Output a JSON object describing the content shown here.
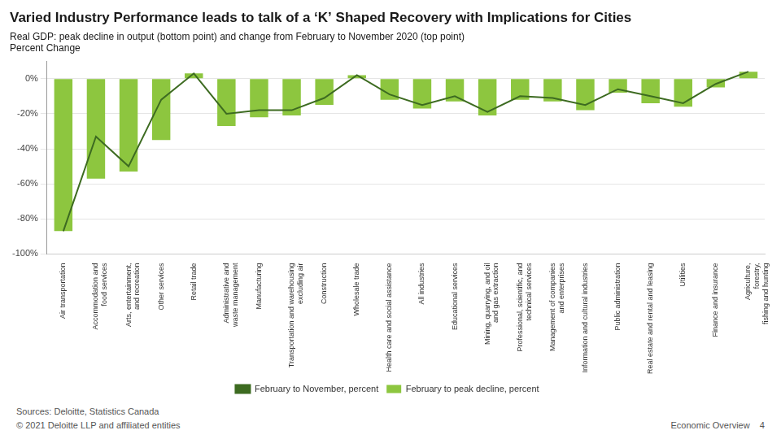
{
  "chart_data": {
    "type": "bar",
    "title": "Varied Industry Performance leads to talk of a ‘K’ Shaped Recovery with Implications for Cities",
    "subtitle": [
      "Real GDP: peak decline in output (bottom point) and change from February to November 2020 (top point)",
      "Percent Change"
    ],
    "categories": [
      "Air transportation",
      "Accommodation and\nfood services",
      "Arts, entertainment,\nand recreation",
      "Other services",
      "Retail trade",
      "Administrative and\nwaste management",
      "Manufacturing",
      "Transportation and warehousing\nexcluding air",
      "Construction",
      "Wholesale trade",
      "Health care and social assistance",
      "All industries",
      "Educational services",
      "Mining, quarrying, and oil\nand gas extraction",
      "Professional, scientific, and\ntechnical services",
      "Management of companies\nand enterprises",
      "Information and cultural industries",
      "Public administration",
      "Real estate and rental and leasing",
      "Utilities",
      "Finance and insurance",
      "Agriculture,\nforestry,\nfishing and hunting"
    ],
    "series": [
      {
        "name": "February to peak decline, percent",
        "type": "bar",
        "color": "#8dc63f",
        "values": [
          -87,
          -57,
          -53,
          -35,
          3,
          -27,
          -22,
          -21,
          -15,
          2,
          -12,
          -17,
          -13,
          -21,
          -12,
          -13,
          -18,
          -8,
          -14,
          -16,
          -5,
          4
        ]
      },
      {
        "name": "February to November, percent",
        "type": "line",
        "color": "#3d6b21",
        "marker": "none",
        "values": [
          -87,
          -33,
          -50,
          -12,
          3,
          -20,
          -18,
          -18,
          -11,
          2,
          -9,
          -15,
          -10,
          -19,
          -10,
          -11,
          -15,
          -6,
          -10,
          -14,
          -3,
          4
        ]
      }
    ],
    "ylim": [
      -100,
      10
    ],
    "yticks": [
      {
        "value": 0,
        "label": "0%"
      },
      {
        "value": -20,
        "label": "-20%"
      },
      {
        "value": -40,
        "label": "-40%"
      },
      {
        "value": -60,
        "label": "-60%"
      },
      {
        "value": -80,
        "label": "-80%"
      },
      {
        "value": -100,
        "label": "-100%"
      }
    ],
    "grid": true,
    "legend": "bottom",
    "annotations": [
      "Sources: Deloitte, Statistics Canada",
      "© 2021 Deloitte LLP and affiliated entities",
      "Economic Overview    4"
    ]
  }
}
